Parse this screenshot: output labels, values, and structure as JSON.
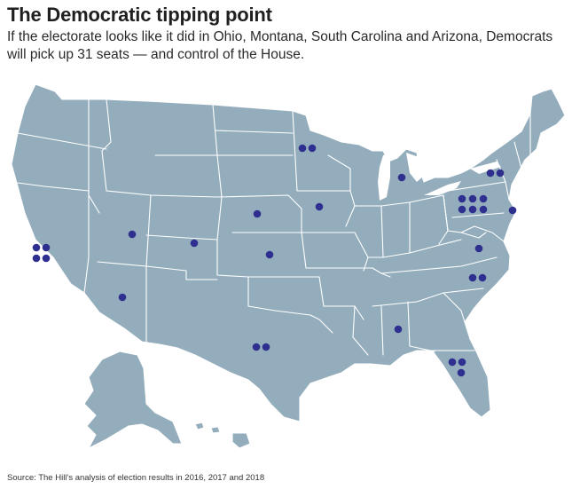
{
  "header": {
    "title": "The Democratic tipping point",
    "subtitle": "If the electorate looks like it did in Ohio, Montana, South Carolina and Arizona, Democrats will pick up 31 seats — and control of the House."
  },
  "footer": {
    "source": "Source: The Hill’s analysis of election results in 2016, 2017 and 2018"
  },
  "map": {
    "region": "United States",
    "land_color": "#93adbc",
    "border_color": "#ffffff",
    "dot_color": "#2e2f8f",
    "total_seats": 31,
    "seat_pickups_by_state": [
      {
        "state": "California",
        "seats": 4
      },
      {
        "state": "Arizona",
        "seats": 1
      },
      {
        "state": "Utah",
        "seats": 1
      },
      {
        "state": "Colorado",
        "seats": 1
      },
      {
        "state": "Nebraska",
        "seats": 1
      },
      {
        "state": "Kansas",
        "seats": 1
      },
      {
        "state": "Texas",
        "seats": 2
      },
      {
        "state": "Minnesota",
        "seats": 2
      },
      {
        "state": "Iowa",
        "seats": 1
      },
      {
        "state": "Michigan",
        "seats": 1
      },
      {
        "state": "Alabama",
        "seats": 1
      },
      {
        "state": "Florida",
        "seats": 3
      },
      {
        "state": "North Carolina",
        "seats": 2
      },
      {
        "state": "Virginia",
        "seats": 1
      },
      {
        "state": "Pennsylvania",
        "seats": 6
      },
      {
        "state": "New York",
        "seats": 2
      },
      {
        "state": "New Jersey",
        "seats": 1
      }
    ]
  }
}
